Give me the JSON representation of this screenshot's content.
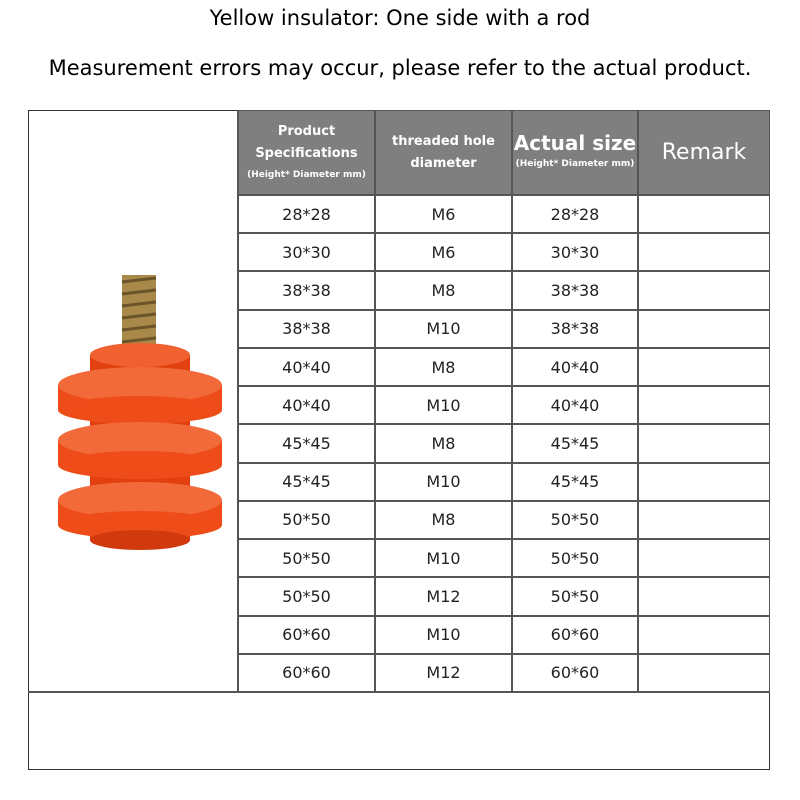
{
  "title": "Yellow insulator: One side with a rod",
  "subtitle": "Measurement errors may occur, please refer to the actual product.",
  "table": {
    "header": [
      {
        "title": "Product Specifications",
        "note": "(Height* Diameter mm)"
      },
      {
        "title": "threaded hole diameter"
      },
      {
        "title": "Actual size",
        "note": "(Height* Diameter mm)"
      },
      {
        "title": "Remark"
      }
    ],
    "rows": [
      [
        "28*28",
        "M6",
        "28*28"
      ],
      [
        "30*30",
        "M6",
        "30*30"
      ],
      [
        "38*38",
        "M8",
        "38*38"
      ],
      [
        "38*38",
        "M10",
        "38*38"
      ],
      [
        "40*40",
        "M8",
        "40*40"
      ],
      [
        "40*40",
        "M10",
        "40*40"
      ],
      [
        "45*45",
        "M8",
        "45*45"
      ],
      [
        "45*45",
        "M10",
        "45*45"
      ],
      [
        "50*50",
        "M8",
        "50*50"
      ],
      [
        "50*50",
        "M10",
        "50*50"
      ],
      [
        "50*50",
        "M12",
        "50*50"
      ],
      [
        "60*60",
        "M10",
        "60*60"
      ],
      [
        "60*60",
        "M12",
        "60*60"
      ]
    ]
  }
}
